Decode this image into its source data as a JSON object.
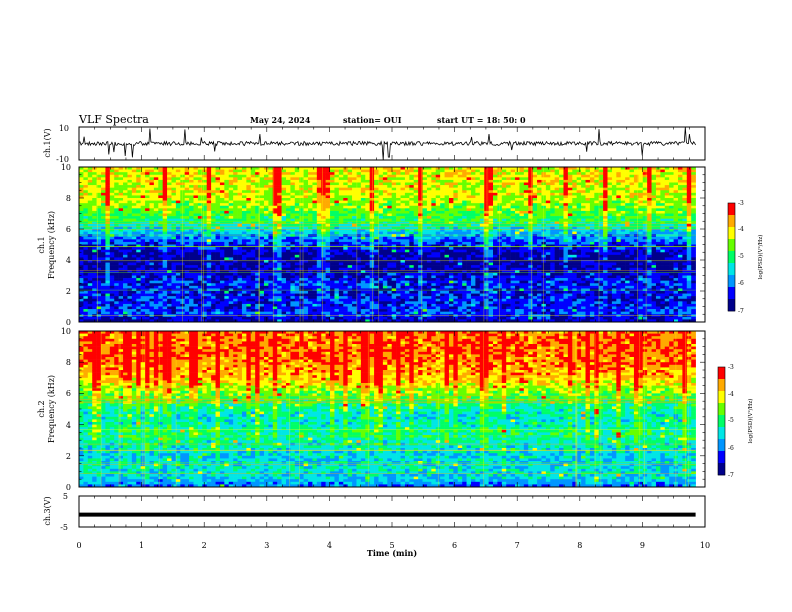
{
  "header": {
    "title": "VLF Spectra",
    "date": "May 24, 2024",
    "station": "station= OUI",
    "start": "start  UT =   18: 50: 0"
  },
  "colors": {
    "spectral_scale": [
      "#00008b",
      "#0000ff",
      "#0096ff",
      "#00e6e6",
      "#00ff66",
      "#66ff00",
      "#ffff00",
      "#ffaa00",
      "#ff0000"
    ],
    "trace": "#000000"
  },
  "chart_data": [
    {
      "type": "line",
      "title": "",
      "ylabel": "ch.1(V)",
      "ylim": [
        -10,
        10
      ],
      "yticks": [
        "10",
        "-10"
      ],
      "series": [
        {
          "x": [
            0,
            9.85
          ],
          "y": [
            0,
            0
          ]
        }
      ]
    },
    {
      "type": "heatmap",
      "ylabel": "ch.1\nFrequency (kHz)",
      "ylim": [
        0,
        10
      ],
      "yticks": [
        "0",
        "2",
        "4",
        "6",
        "8",
        "10"
      ],
      "xlim": [
        0,
        9.85
      ],
      "z_profile_freq_khz": [
        0,
        0.5,
        1,
        1.5,
        2,
        2.5,
        3,
        3.5,
        4,
        4.5,
        5,
        5.5,
        6,
        6.5,
        7,
        7.5,
        8,
        8.5,
        9,
        9.5,
        10
      ],
      "z_profile_log_psd": [
        -6.7,
        -6.2,
        -6.3,
        -6.4,
        -6.4,
        -6.3,
        -6.5,
        -6.7,
        -6.8,
        -6.6,
        -6.3,
        -5.9,
        -5.4,
        -5.0,
        -4.7,
        -4.5,
        -4.3,
        -4.2,
        -4.2,
        -4.1,
        -4.1
      ],
      "colorbar": {
        "zlim": [
          -7,
          -3
        ],
        "ticks": [
          "-3",
          "-4",
          "-5",
          "-6",
          "-7"
        ],
        "label": "log(PSD)(V²/Hz)"
      }
    },
    {
      "type": "heatmap",
      "ylabel": "ch.2\nFrequency (kHz)",
      "ylim": [
        0,
        10
      ],
      "yticks": [
        "0",
        "2",
        "4",
        "6",
        "8",
        "10"
      ],
      "xlim": [
        0,
        9.85
      ],
      "z_profile_freq_khz": [
        0,
        0.5,
        1,
        1.5,
        2,
        2.5,
        3,
        3.5,
        4,
        4.5,
        5,
        5.5,
        6,
        6.5,
        7,
        7.5,
        8,
        8.5,
        9,
        9.5,
        10
      ],
      "z_profile_log_psd": [
        -6.1,
        -5.6,
        -5.4,
        -5.5,
        -5.6,
        -5.4,
        -5.2,
        -5.1,
        -5.3,
        -5.4,
        -5.2,
        -4.9,
        -4.6,
        -4.2,
        -3.9,
        -3.7,
        -3.6,
        -3.5,
        -3.5,
        -3.5,
        -3.5
      ],
      "colorbar": {
        "zlim": [
          -7,
          -3
        ],
        "ticks": [
          "-3",
          "-4",
          "-5",
          "-6",
          "-7"
        ],
        "label": "log(PSD)(V²/Hz)"
      }
    },
    {
      "type": "line",
      "ylabel": "ch.3(V)",
      "ylim": [
        -5,
        5
      ],
      "yticks": [
        "5",
        "-5"
      ],
      "xlabel": "Time  (min)",
      "xlim": [
        0,
        10
      ],
      "xticks": [
        "0",
        "1",
        "2",
        "3",
        "4",
        "5",
        "6",
        "7",
        "8",
        "9",
        "10"
      ],
      "series": [
        {
          "x": [
            0,
            9.85
          ],
          "y": [
            -1,
            -1
          ]
        }
      ]
    }
  ]
}
